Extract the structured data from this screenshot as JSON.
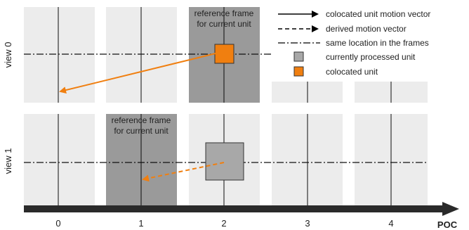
{
  "views": [
    {
      "label": "view 0"
    },
    {
      "label": "view 1"
    }
  ],
  "poc": {
    "axis_label": "POC",
    "ticks": [
      "0",
      "1",
      "2",
      "3",
      "4"
    ]
  },
  "reference_frames": [
    {
      "view": 0,
      "poc": 2,
      "line1": "reference frame",
      "line2": "for current unit"
    },
    {
      "view": 1,
      "poc": 1,
      "line1": "reference frame",
      "line2": "for current unit"
    }
  ],
  "legend": {
    "items": [
      {
        "key": "solid-arrow",
        "text": "colocated unit motion vector"
      },
      {
        "key": "dashed-arrow",
        "text": "derived motion vector"
      },
      {
        "key": "dashdot-line",
        "text": "same location in the frames"
      },
      {
        "key": "gray-square",
        "text": "currently processed unit"
      },
      {
        "key": "orange-square",
        "text": "colocated unit"
      }
    ]
  },
  "colors": {
    "frame_light": "#ececec",
    "frame_dark": "#9a9a9a",
    "orange": "#f07f10",
    "unit_gray": "#a8a8a8",
    "axis": "#2a2a2a"
  }
}
